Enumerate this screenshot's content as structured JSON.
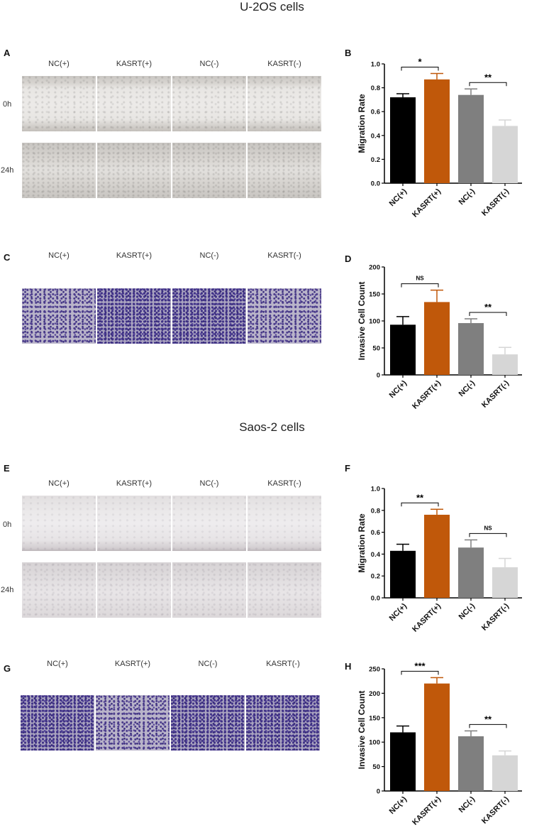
{
  "sections": [
    {
      "title": "U-2OS cells"
    },
    {
      "title": "Saos-2 cells"
    }
  ],
  "panels": {
    "A": {
      "label": "A",
      "columns": [
        "NC(+)",
        "KASRT(+)",
        "NC(-)",
        "KASRT(-)"
      ],
      "rows": [
        "0h",
        "24h"
      ]
    },
    "B": {
      "label": "B"
    },
    "C": {
      "label": "C",
      "columns": [
        "NC(+)",
        "KASRT(+)",
        "NC(-)",
        "KASRT(-)"
      ]
    },
    "D": {
      "label": "D"
    },
    "E": {
      "label": "E",
      "columns": [
        "NC(+)",
        "KASRT(+)",
        "NC(-)",
        "KASRT(-)"
      ],
      "rows": [
        "0h",
        "24h"
      ]
    },
    "F": {
      "label": "F"
    },
    "G": {
      "label": "G",
      "columns": [
        "NC(+)",
        "KASRT(+)",
        "NC(-)",
        "KASRT(-)"
      ]
    },
    "H": {
      "label": "H"
    }
  },
  "colors": {
    "NC(+)": "#000000",
    "KASRT(+)": "#c0580a",
    "NC(-)": "#7f7f7f",
    "KASRT(-)": "#d6d6d6"
  },
  "chart_data": [
    {
      "id": "B",
      "type": "bar",
      "categories": [
        "NC(+)",
        "KASRT(+)",
        "NC(-)",
        "KASRT(-)"
      ],
      "values": [
        0.72,
        0.87,
        0.74,
        0.48
      ],
      "errors": [
        0.03,
        0.05,
        0.05,
        0.05
      ],
      "ylabel": "Migration Rate",
      "ylim": [
        0,
        1.0
      ],
      "yticks": [
        "0.0",
        "0.2",
        "0.4",
        "0.6",
        "0.8",
        "1.0"
      ],
      "annotations": [
        {
          "pair": [
            0,
            1
          ],
          "text": "*"
        },
        {
          "pair": [
            2,
            3
          ],
          "text": "**"
        }
      ]
    },
    {
      "id": "D",
      "type": "bar",
      "categories": [
        "NC(+)",
        "KASRT(+)",
        "NC(-)",
        "KASRT(-)"
      ],
      "values": [
        93,
        135,
        96,
        38
      ],
      "errors": [
        15,
        22,
        8,
        13
      ],
      "ylabel": "Invasive Cell Count",
      "ylim": [
        0,
        200
      ],
      "yticks": [
        "0",
        "50",
        "100",
        "150",
        "200"
      ],
      "annotations": [
        {
          "pair": [
            0,
            1
          ],
          "text": "NS"
        },
        {
          "pair": [
            2,
            3
          ],
          "text": "**"
        }
      ]
    },
    {
      "id": "F",
      "type": "bar",
      "categories": [
        "NC(+)",
        "KASRT(+)",
        "NC(-)",
        "KASRT(-)"
      ],
      "values": [
        0.43,
        0.76,
        0.46,
        0.28
      ],
      "errors": [
        0.06,
        0.05,
        0.07,
        0.08
      ],
      "ylabel": "Migration Rate",
      "ylim": [
        0,
        1.0
      ],
      "yticks": [
        "0.0",
        "0.2",
        "0.4",
        "0.6",
        "0.8",
        "1.0"
      ],
      "annotations": [
        {
          "pair": [
            0,
            1
          ],
          "text": "**"
        },
        {
          "pair": [
            2,
            3
          ],
          "text": "NS"
        }
      ]
    },
    {
      "id": "H",
      "type": "bar",
      "categories": [
        "NC(+)",
        "KASRT(+)",
        "NC(-)",
        "KASRT(-)"
      ],
      "values": [
        120,
        220,
        112,
        73
      ],
      "errors": [
        13,
        12,
        11,
        9
      ],
      "ylabel": "Invasive Cell Count",
      "ylim": [
        0,
        250
      ],
      "yticks": [
        "0",
        "50",
        "100",
        "150",
        "200",
        "250"
      ],
      "annotations": [
        {
          "pair": [
            0,
            1
          ],
          "text": "***"
        },
        {
          "pair": [
            2,
            3
          ],
          "text": "**"
        }
      ]
    }
  ]
}
